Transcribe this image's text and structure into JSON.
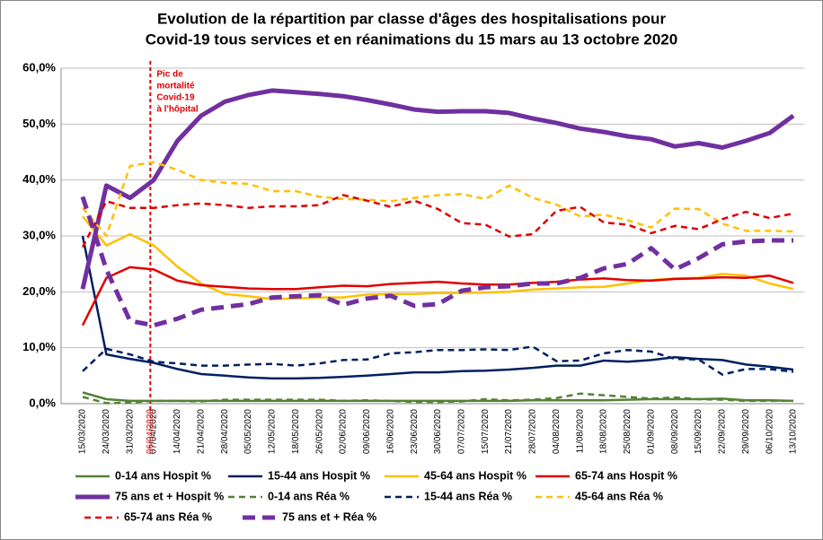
{
  "chart_data": {
    "type": "line",
    "title": [
      "Evolution de la répartition par classe d'âges des hospitalisations pour",
      "Covid-19 tous services et en réanimations du 15 mars au 13 octobre 2020"
    ],
    "categories": [
      "15/03/2020",
      "24/03/2020",
      "31/03/2020",
      "07/04/2020",
      "14/04/2020",
      "21/04/2020",
      "28/04/2020",
      "05/05/2020",
      "12/05/2020",
      "18/05/2020",
      "26/05/2020",
      "02/06/2020",
      "09/06/2020",
      "16/06/2020",
      "23/06/2020",
      "30/06/2020",
      "07/07/2020",
      "15/07/2020",
      "21/07/2020",
      "28/07/2020",
      "04/08/2020",
      "11/08/2020",
      "18/08/2020",
      "25/08/2020",
      "01/09/2020",
      "08/09/2020",
      "15/09/2020",
      "22/09/2020",
      "29/09/2020",
      "06/10/2020",
      "13/10/2020"
    ],
    "ylim": [
      0,
      60
    ],
    "yticks": [
      {
        "value": 0,
        "label": "0,0%"
      },
      {
        "value": 10,
        "label": "10,0%"
      },
      {
        "value": 20,
        "label": "20,0%"
      },
      {
        "value": 30,
        "label": "30,0%"
      },
      {
        "value": 40,
        "label": "40,0%"
      },
      {
        "value": 50,
        "label": "50,0%"
      },
      {
        "value": 60,
        "label": "60,0%"
      }
    ],
    "grid": true,
    "annotation": {
      "date": "06/04/2020",
      "text": [
        "Pic de",
        "mortalité",
        "Covid-19",
        "à l'hôpital"
      ],
      "color": "#e00000"
    },
    "series": [
      {
        "name": "0-14 ans Hospit %",
        "color": "#548235",
        "style": "solid",
        "linewidth": 2.5,
        "values": [
          2,
          0.8,
          0.5,
          0.5,
          0.5,
          0.5,
          0.5,
          0.5,
          0.5,
          0.5,
          0.5,
          0.5,
          0.5,
          0.5,
          0.5,
          0.5,
          0.5,
          0.5,
          0.5,
          0.6,
          0.6,
          0.6,
          0.6,
          0.7,
          0.8,
          0.8,
          0.8,
          0.9,
          0.6,
          0.6,
          0.5
        ]
      },
      {
        "name": "15-44 ans Hospit %",
        "color": "#002060",
        "style": "solid",
        "linewidth": 2.5,
        "values": [
          30,
          8.8,
          8,
          7.3,
          6.2,
          5.3,
          5,
          4.7,
          4.5,
          4.5,
          4.6,
          4.8,
          5,
          5.3,
          5.6,
          5.6,
          5.8,
          5.9,
          6.1,
          6.4,
          6.8,
          6.8,
          7.7,
          7.5,
          7.8,
          8.3,
          8,
          7.8,
          7,
          6.6,
          6.1
        ]
      },
      {
        "name": "45-64 ans Hospit %",
        "color": "#ffc000",
        "style": "solid",
        "linewidth": 2.5,
        "values": [
          33.5,
          28.3,
          30.3,
          28.3,
          24.5,
          21.5,
          19.6,
          19.2,
          18.7,
          18.8,
          19,
          19,
          19.5,
          19.6,
          19.6,
          19.8,
          19.8,
          19.9,
          20,
          20.4,
          20.6,
          20.8,
          20.9,
          21.5,
          22.1,
          22.4,
          22.5,
          23.2,
          22.9,
          21.5,
          20.5
        ]
      },
      {
        "name": "65-74 ans Hospit %",
        "color": "#e00000",
        "style": "solid",
        "linewidth": 2.5,
        "values": [
          14,
          22.5,
          24.4,
          24,
          22,
          21.2,
          20.9,
          20.6,
          20.5,
          20.5,
          20.8,
          21.1,
          21,
          21.4,
          21.6,
          21.8,
          21.5,
          21.3,
          21.3,
          21.6,
          21.8,
          22.2,
          22.4,
          22.1,
          22,
          22.3,
          22.4,
          22.6,
          22.5,
          22.9,
          21.6
        ]
      },
      {
        "name": "75 ans et + Hospit %",
        "color": "#7030a0",
        "style": "solid",
        "linewidth": 5,
        "values": [
          20.5,
          39,
          36.8,
          40,
          47,
          51.5,
          54,
          55.2,
          56,
          55.7,
          55.4,
          55,
          54.3,
          53.5,
          52.6,
          52.2,
          52.3,
          52.3,
          52,
          51,
          50.2,
          49.2,
          48.6,
          47.8,
          47.3,
          46,
          46.6,
          45.8,
          47,
          48.4,
          51.5
        ]
      },
      {
        "name": "0-14 ans Réa %",
        "color": "#548235",
        "style": "dashed",
        "linewidth": 2.5,
        "values": [
          1.2,
          0.1,
          0.2,
          0.5,
          0.5,
          0.4,
          0.7,
          0.7,
          0.7,
          0.7,
          0.7,
          0.5,
          0.6,
          0.5,
          0.3,
          0.3,
          0.4,
          0.8,
          0.6,
          0.7,
          1,
          1.8,
          1.5,
          1.2,
          0.9,
          1.1,
          0.8,
          0.7,
          0.5,
          0.5,
          0.5
        ]
      },
      {
        "name": "15-44 ans Réa %",
        "color": "#002060",
        "style": "dashed",
        "linewidth": 2.5,
        "values": [
          5.8,
          9.8,
          8.8,
          7.5,
          7.2,
          6.8,
          6.8,
          7,
          7.1,
          6.8,
          7.2,
          7.8,
          7.9,
          9,
          9.2,
          9.6,
          9.6,
          9.7,
          9.6,
          10.2,
          7.6,
          7.7,
          9,
          9.6,
          9.3,
          8,
          7.9,
          5.2,
          6.2,
          6.2,
          5.7
        ]
      },
      {
        "name": "45-64 ans Réa %",
        "color": "#ffc000",
        "style": "dashed",
        "linewidth": 2.5,
        "values": [
          35,
          30,
          42.5,
          43.2,
          41.8,
          40,
          39.5,
          39.3,
          38,
          38,
          37,
          36.6,
          36.5,
          36.2,
          36.8,
          37.3,
          37.5,
          36.6,
          39,
          36.8,
          35.6,
          33.5,
          33.8,
          32.8,
          31.5,
          34.9,
          34.8,
          32.2,
          30.9,
          30.9,
          30.8
        ]
      },
      {
        "name": "65-74 ans Réa %",
        "color": "#e00000",
        "style": "dashed",
        "linewidth": 2.5,
        "values": [
          28,
          36.2,
          35,
          35,
          35.5,
          35.8,
          35.5,
          35,
          35.3,
          35.3,
          35.5,
          37.3,
          36.3,
          35.2,
          36.3,
          34.8,
          32.3,
          32,
          29.9,
          30.3,
          34.5,
          35.2,
          32.4,
          32,
          30.5,
          31.8,
          31.2,
          33,
          34.3,
          33.2,
          34
        ]
      },
      {
        "name": "75 ans et + Réa %",
        "color": "#7030a0",
        "style": "dashed",
        "linewidth": 5,
        "values": [
          37,
          24,
          14.8,
          14,
          15.2,
          16.8,
          17.3,
          17.8,
          19,
          19.2,
          19.4,
          17.7,
          18.8,
          19.3,
          17.5,
          17.8,
          20.2,
          20.8,
          21,
          21.5,
          21.5,
          22.5,
          24.2,
          25,
          27.8,
          24,
          26,
          28.5,
          29,
          29.2,
          29.2
        ]
      }
    ]
  }
}
